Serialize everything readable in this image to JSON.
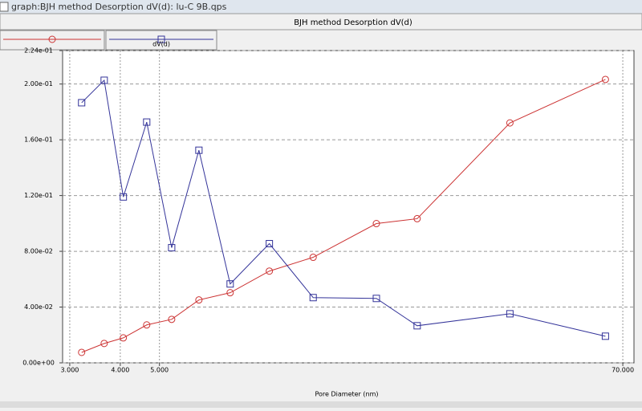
{
  "window_title": "graph:BJH method Desorption  dV(d): lu-C 9B.qps",
  "chart_data": {
    "type": "line",
    "title": "BJH method Desorption  dV(d)",
    "x_label": "Pore Diameter (nm)",
    "x_log": true,
    "grid": true,
    "x": [
      3.21,
      3.65,
      4.07,
      4.65,
      5.36,
      6.26,
      7.48,
      9.35,
      12.0,
      17.2,
      21.7,
      36.8,
      63.4
    ],
    "xlim": [
      2.88,
      74.6
    ],
    "xticks": [
      {
        "value": 3,
        "label": "3.000"
      },
      {
        "value": 4,
        "label": "4.000"
      },
      {
        "value": 5,
        "label": "5.000"
      },
      {
        "value": 70,
        "label": "70.000"
      }
    ],
    "ylim": [
      0,
      0.224
    ],
    "yticks": [
      {
        "value": 0,
        "label": "0.00e+00"
      },
      {
        "value": 0.04,
        "label": "4.00e-02"
      },
      {
        "value": 0.08,
        "label": "8.00e-02"
      },
      {
        "value": 0.12,
        "label": "1.20e-01"
      },
      {
        "value": 0.16,
        "label": "1.60e-01"
      },
      {
        "value": 0.2,
        "label": "2.00e-01"
      },
      {
        "value": 0.224,
        "label": "2.24e-01"
      }
    ],
    "series": [
      {
        "color": "#cc3333",
        "marker": "circle",
        "values": [
          0.0075,
          0.0139,
          0.0179,
          0.0272,
          0.0312,
          0.0451,
          0.0503,
          0.0658,
          0.0757,
          0.0999,
          0.1034,
          0.1721,
          0.2033
        ]
      },
      {
        "name": "dV(d)",
        "color": "#333399",
        "marker": "square",
        "values": [
          0.1866,
          0.2027,
          0.119,
          0.1727,
          0.0826,
          0.1525,
          0.0566,
          0.0855,
          0.0468,
          0.0462,
          0.0266,
          0.0352,
          0.0191
        ]
      }
    ]
  }
}
